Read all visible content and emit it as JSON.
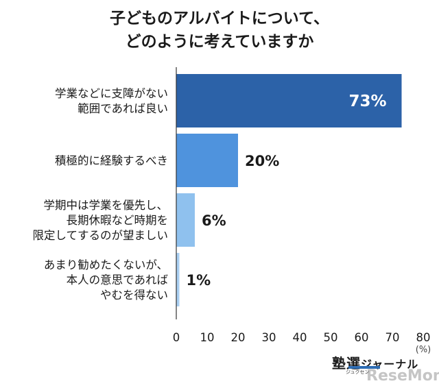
{
  "chart_data": {
    "type": "bar",
    "orientation": "horizontal",
    "title": [
      "子どものアルバイトについて、",
      "どのように考えていますか"
    ],
    "categories": [
      [
        "学業などに支障がない",
        "範囲であれば良い"
      ],
      [
        "積極的に経験するべき"
      ],
      [
        "学期中は学業を優先し、",
        "長期休暇など時期を",
        "限定してするのが望ましい"
      ],
      [
        "あまり勧めたくないが、",
        "本人の意思であれば",
        "やむを得ない"
      ]
    ],
    "values": [
      73,
      20,
      6,
      1
    ],
    "value_labels": [
      "73%",
      "20%",
      "6%",
      "1%"
    ],
    "bar_colors": [
      "#2c62a8",
      "#4f93dd",
      "#8fc1ee",
      "#a9cff2"
    ],
    "xlim": [
      0,
      80
    ],
    "xticks": [
      0,
      10,
      20,
      30,
      40,
      50,
      60,
      70,
      80
    ],
    "xlabel": "(%)",
    "grid": false,
    "legend": "none"
  },
  "logo": {
    "main": "塾選",
    "main_small": "ジャーナル",
    "sub": "ジュクセン",
    "watermark": "ReseMom"
  }
}
